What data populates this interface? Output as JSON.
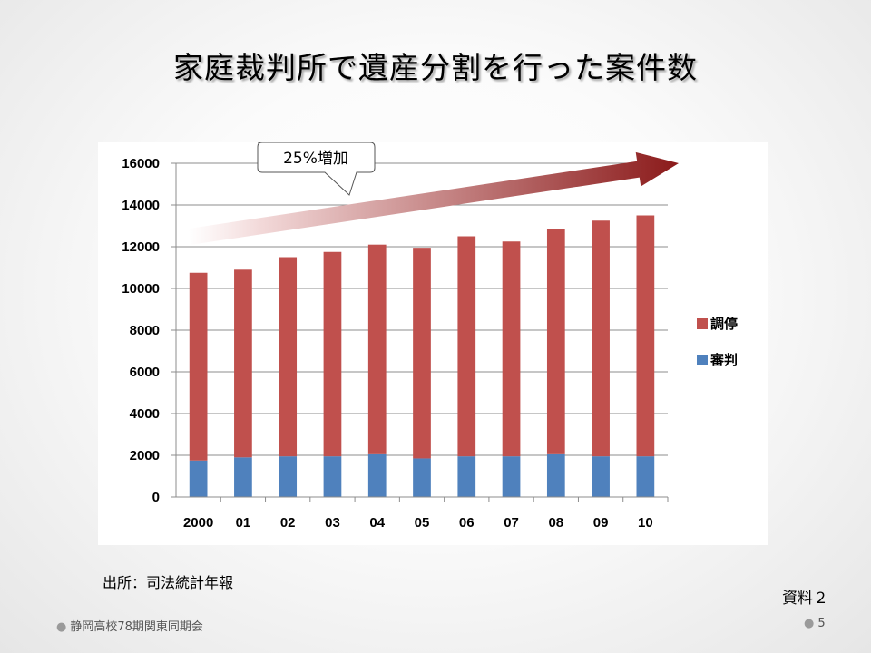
{
  "slide": {
    "title": "家庭裁判所で遺産分割を行った案件数",
    "source_note": "出所：司法統計年報",
    "material_label": "資料２",
    "footer_left": "静岡高校78期関東同期会",
    "page_number": "5"
  },
  "chart_data": {
    "type": "bar",
    "stacked": true,
    "categories": [
      "2000",
      "01",
      "02",
      "03",
      "04",
      "05",
      "06",
      "07",
      "08",
      "09",
      "10"
    ],
    "series": [
      {
        "name": "審判",
        "color": "#4f81bd",
        "values": [
          1750,
          1900,
          1950,
          1950,
          2050,
          1850,
          1950,
          1950,
          2050,
          1950,
          1950
        ]
      },
      {
        "name": "調停",
        "color": "#c0504d",
        "values": [
          9000,
          9000,
          9550,
          9800,
          10050,
          10100,
          10550,
          10300,
          10800,
          11300,
          11550
        ]
      }
    ],
    "ylim": [
      0,
      16000
    ],
    "y_ticks": [
      0,
      2000,
      4000,
      6000,
      8000,
      10000,
      12000,
      14000,
      16000
    ],
    "grid": true,
    "legend_position": "right",
    "annotation": {
      "text": "25%増加",
      "arrow_color": "#8b1a1a"
    }
  }
}
